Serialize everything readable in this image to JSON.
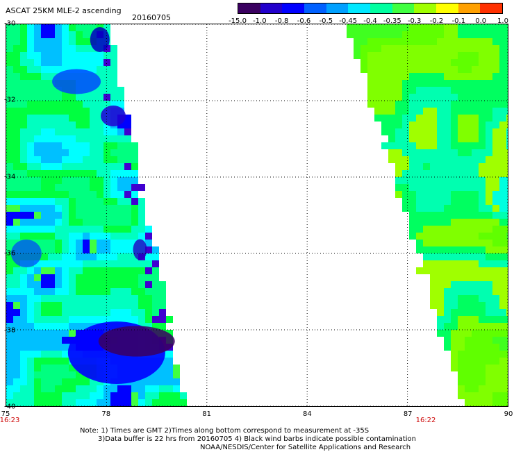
{
  "header": {
    "title": "ASCAT 25KM MLE-2 ascending",
    "date": "20160705"
  },
  "colorbar": {
    "labels": [
      "-15.0",
      "-1.0",
      "-0.8",
      "-0.6",
      "-0.5",
      "-0.45",
      "-0.4",
      "-0.35",
      "-0.3",
      "-0.2",
      "-0.1",
      "0.0",
      "1.0"
    ],
    "colors": [
      "#3a0060",
      "#2200cc",
      "#0000ff",
      "#0060ff",
      "#00a0ff",
      "#00e8ff",
      "#00ffa0",
      "#40ff40",
      "#a0ff00",
      "#ffff00",
      "#ffa000",
      "#ff3000"
    ]
  },
  "map": {
    "y_axis": [
      "-30",
      "-32",
      "-34",
      "-36",
      "-38",
      "-40"
    ],
    "x_axis": [
      "75",
      "78",
      "81",
      "84",
      "87",
      "90"
    ],
    "time_left": "16:23",
    "time_right": "16:22",
    "lon_range": [
      75,
      90
    ],
    "lat_range": [
      -40,
      -30
    ],
    "grid": "dotted"
  },
  "notes": {
    "line1": "Note: 1) Times are GMT 2)Times along bottom correspond to measurement at -35S",
    "line2": "3)Data buffer is 22 hrs from 20160705 4) Black wind barbs indicate possible contamination",
    "line3": "NOAA/NESDIS/Center for Satellite Applications and Research"
  }
}
